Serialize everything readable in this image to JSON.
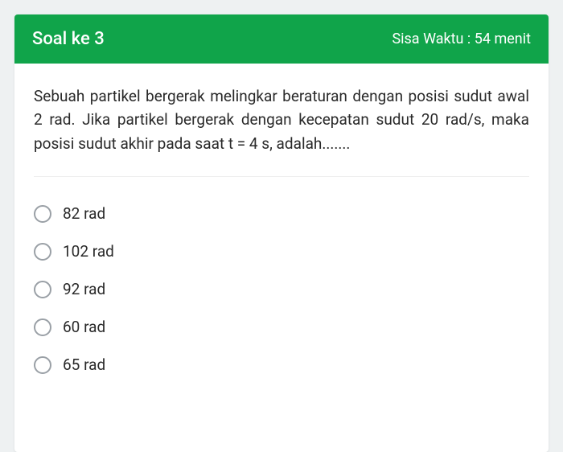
{
  "header": {
    "title": "Soal ke 3",
    "timer": "Sisa Waktu : 54 menit",
    "bg_color": "#10a44a",
    "text_color": "#ffffff"
  },
  "question": {
    "text": "Sebuah partikel bergerak melingkar beraturan dengan posisi sudut awal 2 rad. Jika partikel bergerak dengan kecepatan sudut 20 rad/s, maka posisi sudut akhir pada saat t = 4 s, adalah......."
  },
  "options": [
    {
      "label": "82 rad"
    },
    {
      "label": "102 rad"
    },
    {
      "label": "92 rad"
    },
    {
      "label": "60 rad"
    },
    {
      "label": "65 rad"
    }
  ],
  "styles": {
    "page_bg": "#eef1f2",
    "card_bg": "#ffffff",
    "text_color": "#2a2a2a",
    "radio_border": "#9aa0a6",
    "divider_color": "#eeeeee",
    "question_fontsize": 19,
    "option_fontsize": 19
  }
}
